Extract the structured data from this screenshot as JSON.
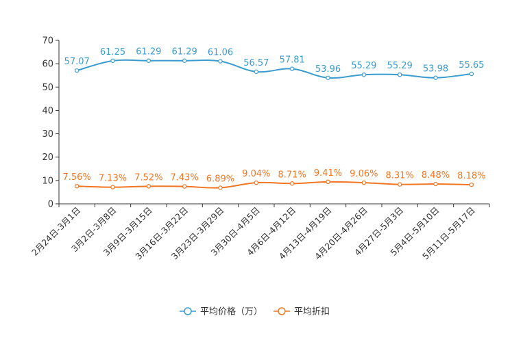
{
  "chart_data": {
    "type": "line",
    "title": "",
    "xlabel": "",
    "ylabel": "",
    "ylim": [
      0,
      70
    ],
    "yticks": [
      0,
      10,
      20,
      30,
      40,
      50,
      60,
      70
    ],
    "grid": false,
    "legend_position": "bottom-center",
    "categories": [
      "2月24日-3月1日",
      "3月2日-3月8日",
      "3月9日-3月15日",
      "3月16日-3月22日",
      "3月23日-3月29日",
      "3月30日-4月5日",
      "4月6日-4月12日",
      "4月13日-4月19日",
      "4月20日-4月26日",
      "4月27日-5月3日",
      "5月4日-5月10日",
      "5月11日-5月17日"
    ],
    "series": [
      {
        "name": "平均价格（万）",
        "color": "#3a9bd0",
        "values": [
          57.07,
          61.25,
          61.29,
          61.29,
          61.06,
          56.57,
          57.81,
          53.96,
          55.29,
          55.29,
          53.98,
          55.65
        ],
        "labels": [
          "57.07",
          "61.25",
          "61.29",
          "61.29",
          "61.06",
          "56.57",
          "57.81",
          "53.96",
          "55.29",
          "55.29",
          "53.98",
          "55.65"
        ]
      },
      {
        "name": "平均折扣",
        "color": "#f27521",
        "values": [
          7.56,
          7.13,
          7.52,
          7.43,
          6.89,
          9.04,
          8.71,
          9.41,
          9.06,
          8.31,
          8.48,
          8.18
        ],
        "labels": [
          "7.56%",
          "7.13%",
          "7.52%",
          "7.43%",
          "6.89%",
          "9.04%",
          "8.71%",
          "9.41%",
          "9.06%",
          "8.31%",
          "8.48%",
          "8.18%"
        ]
      }
    ]
  }
}
